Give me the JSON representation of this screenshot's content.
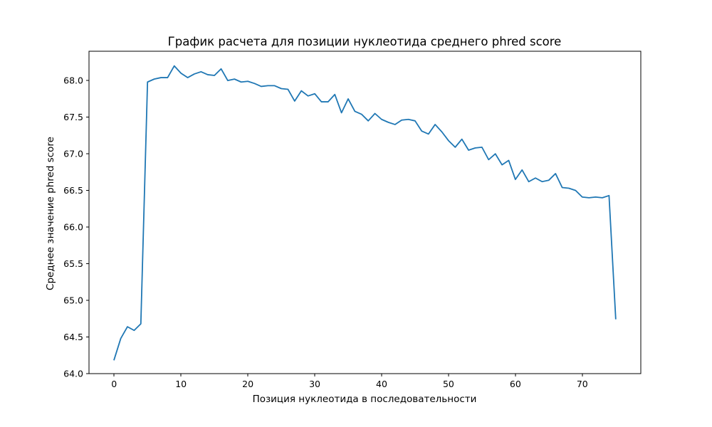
{
  "chart_data": {
    "type": "line",
    "title": "График расчета для позиции нуклеотида среднего phred score",
    "xlabel": "Позиция нуклеотида в последовательности",
    "ylabel": "Среднее значение phred score",
    "xlim": [
      -3.75,
      78.75
    ],
    "ylim": [
      64.0,
      68.4
    ],
    "xticks": [
      0,
      10,
      20,
      30,
      40,
      50,
      60,
      70
    ],
    "xtick_labels": [
      "0",
      "10",
      "20",
      "30",
      "40",
      "50",
      "60",
      "70"
    ],
    "yticks": [
      64.0,
      64.5,
      65.0,
      65.5,
      66.0,
      66.5,
      67.0,
      67.5,
      68.0
    ],
    "ytick_labels": [
      "64.0",
      "64.5",
      "65.0",
      "65.5",
      "66.0",
      "66.5",
      "67.0",
      "67.5",
      "68.0"
    ],
    "grid": false,
    "color": "#1f77b4",
    "series": [
      {
        "x": [
          0,
          1,
          2,
          3,
          4,
          5,
          6,
          7,
          8,
          9,
          10,
          11,
          12,
          13,
          14,
          15,
          16,
          17,
          18,
          19,
          20,
          21,
          22,
          23,
          24,
          25,
          26,
          27,
          28,
          29,
          30,
          31,
          32,
          33,
          34,
          35,
          36,
          37,
          38,
          39,
          40,
          41,
          42,
          43,
          44,
          45,
          46,
          47,
          48,
          49,
          50,
          51,
          52,
          53,
          54,
          55,
          56,
          57,
          58,
          59,
          60,
          61,
          62,
          63,
          64,
          65,
          66,
          67,
          68,
          69,
          70,
          71,
          72,
          73,
          74,
          75
        ],
        "values": [
          64.19,
          64.48,
          64.64,
          64.59,
          64.68,
          67.98,
          68.02,
          68.04,
          68.04,
          68.2,
          68.1,
          68.04,
          68.09,
          68.12,
          68.08,
          68.07,
          68.16,
          68.0,
          68.02,
          67.98,
          67.99,
          67.96,
          67.92,
          67.93,
          67.93,
          67.89,
          67.88,
          67.72,
          67.86,
          67.79,
          67.82,
          67.71,
          67.71,
          67.81,
          67.56,
          67.75,
          67.58,
          67.54,
          67.45,
          67.55,
          67.47,
          67.43,
          67.4,
          67.46,
          67.47,
          67.45,
          67.31,
          67.27,
          67.4,
          67.3,
          67.18,
          67.09,
          67.2,
          67.05,
          67.08,
          67.09,
          66.92,
          67.0,
          66.85,
          66.91,
          66.65,
          66.78,
          66.62,
          66.67,
          66.62,
          66.64,
          66.73,
          66.54,
          66.53,
          66.5,
          66.41,
          66.4,
          66.41,
          66.4,
          66.43,
          64.75
        ]
      }
    ]
  }
}
